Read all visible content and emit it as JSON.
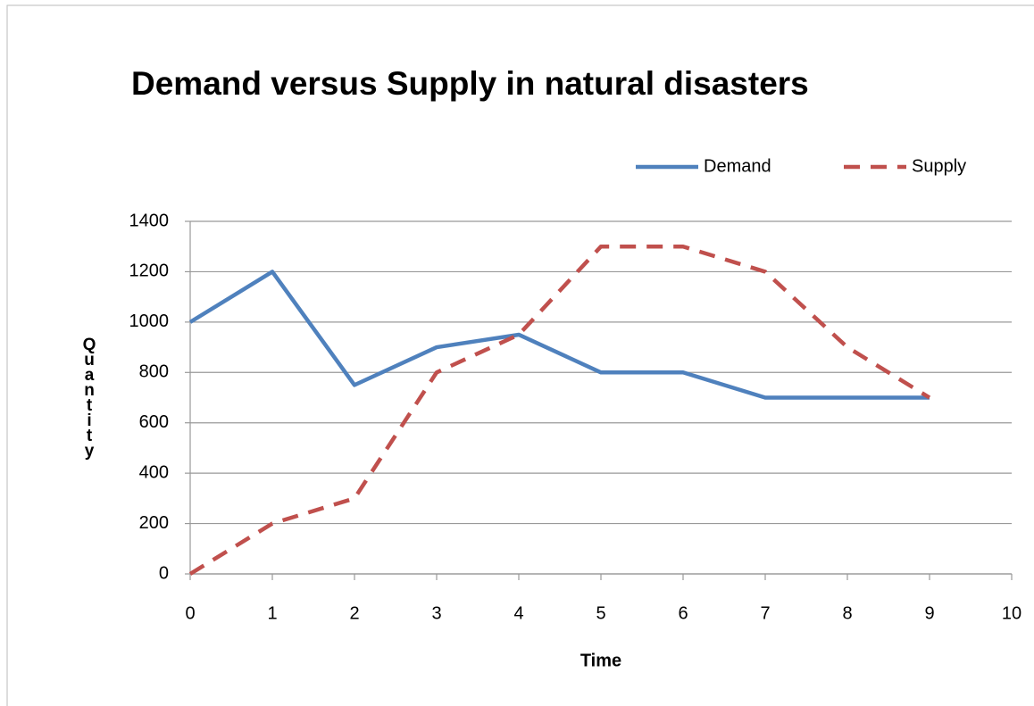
{
  "chart_data": {
    "type": "line",
    "title": "Demand versus Supply in natural disasters",
    "x_label": "Time",
    "y_label": "Quantity",
    "x": [
      0,
      1,
      2,
      3,
      4,
      5,
      6,
      7,
      8,
      9
    ],
    "series": [
      {
        "name": "Demand",
        "color": "#4f81bd",
        "values": [
          1000,
          1200,
          750,
          900,
          950,
          800,
          800,
          700,
          700,
          700
        ]
      },
      {
        "name": "Supply",
        "color": "#c0504d",
        "dashed": true,
        "values": [
          0,
          200,
          300,
          800,
          950,
          1300,
          1300,
          1200,
          900,
          700
        ]
      }
    ],
    "xlim": [
      0,
      10
    ],
    "xticks": [
      0,
      1,
      2,
      3,
      4,
      5,
      6,
      7,
      8,
      9,
      10
    ],
    "ylim": [
      0,
      1400
    ],
    "yticks": [
      0,
      200,
      400,
      600,
      800,
      1000,
      1200,
      1400
    ],
    "grid": true,
    "legend": "top-right"
  }
}
